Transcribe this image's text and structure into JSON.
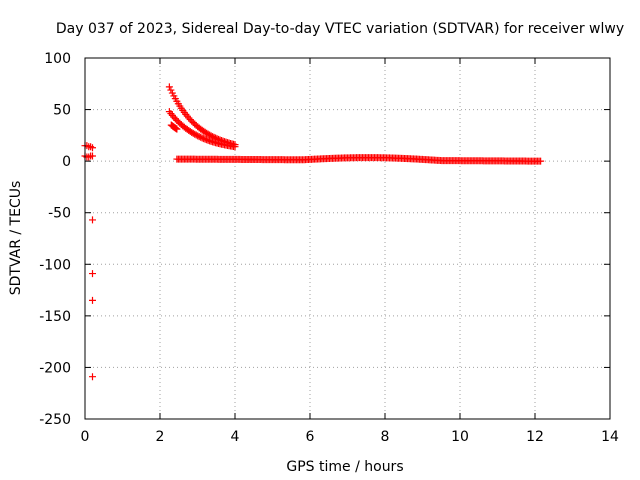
{
  "chart_data": {
    "type": "scatter",
    "title": "Day 037 of 2023, Sidereal Day-to-day VTEC variation (SDTVAR) for receiver wlwy",
    "xlabel": "GPS time / hours",
    "ylabel": "SDTVAR / TECUs",
    "xlim": [
      0,
      14
    ],
    "ylim": [
      -250,
      100
    ],
    "xticks": [
      0,
      2,
      4,
      6,
      8,
      10,
      12,
      14
    ],
    "yticks": [
      100,
      50,
      0,
      -50,
      -100,
      -150,
      -200,
      -250
    ],
    "grid": true,
    "marker": "+",
    "color": "#ff0000",
    "series": [
      {
        "name": "SDTVAR",
        "points": [
          [
            0.0,
            15
          ],
          [
            0.05,
            15
          ],
          [
            0.1,
            14
          ],
          [
            0.15,
            14
          ],
          [
            0.2,
            13
          ],
          [
            0.0,
            5
          ],
          [
            0.05,
            4
          ],
          [
            0.1,
            4
          ],
          [
            0.15,
            5
          ],
          [
            0.2,
            5
          ],
          [
            0.2,
            -57
          ],
          [
            0.2,
            -109
          ],
          [
            0.2,
            -135
          ],
          [
            0.2,
            -209
          ]
        ]
      }
    ],
    "bands": [
      {
        "name": "descending-upper",
        "x": [
          2.25,
          4.0
        ],
        "y": [
          72,
          16
        ],
        "curve": "decay"
      },
      {
        "name": "descending-middle",
        "x": [
          2.25,
          4.0
        ],
        "y": [
          48,
          14
        ],
        "curve": "decay"
      },
      {
        "name": "short-lower",
        "x": [
          2.3,
          2.45
        ],
        "y": [
          35,
          31
        ],
        "curve": "linear"
      },
      {
        "name": "baseline",
        "x": [
          2.45,
          12.15
        ],
        "y": [
          2,
          0
        ],
        "curve": "baseline"
      }
    ]
  }
}
